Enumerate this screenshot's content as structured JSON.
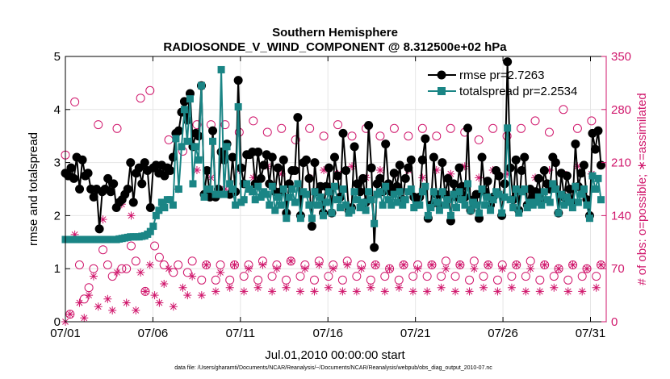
{
  "chart_data": {
    "type": "line",
    "title": [
      "Southern Hemisphere",
      "RADIOSONDE_V_WIND_COMPONENT @ 8.312500e+02 hPa"
    ],
    "xlabel": "Jul.01,2010 00:00:00 start",
    "ylabel": "rmse and totalspread",
    "y2label": "# of obs: o=possible; ∗=assimilated",
    "footnote": "data file: /Users/gharamti/Documents/NCAR/Reanalysis/~/Documents/NCAR/Reanalysis/webpub/obs_diag_output_2010-07.nc",
    "xlim": [
      0,
      30.9
    ],
    "ylim": [
      0,
      5
    ],
    "y2lim": [
      0,
      350
    ],
    "x_ticks": [
      0,
      5,
      10,
      15,
      20,
      25,
      30
    ],
    "x_tick_labels": [
      "07/01",
      "07/06",
      "07/11",
      "07/16",
      "07/21",
      "07/26",
      "07/31"
    ],
    "y_ticks": [
      0,
      1,
      2,
      3,
      4,
      5
    ],
    "y_tick_labels": [
      "0",
      "1",
      "2",
      "3",
      "4",
      "5"
    ],
    "y2_ticks": [
      0,
      70,
      140,
      210,
      280,
      350
    ],
    "y2_tick_labels": [
      "0",
      "70",
      "140",
      "210",
      "280",
      "350"
    ],
    "legend_position": "top-right",
    "colors": {
      "rmse": "#000000",
      "spread": "#1a8585",
      "obs": "#d0176c",
      "axis": "#000000"
    },
    "series": [
      {
        "name": "rmse",
        "legend": "rmse pr=2.7263",
        "axis": "left",
        "style": "line-circle",
        "values": [
          2.8,
          2.75,
          2.9,
          2.7,
          3.1,
          2.5,
          3.05,
          2.75,
          2.8,
          2.5,
          2.35,
          2.5,
          1.75,
          2.45,
          2.5,
          2.7,
          2.45,
          2.6,
          2.15,
          2.25,
          2.3,
          2.4,
          2.5,
          3.0,
          2.25,
          2.8,
          2.9,
          2.6,
          3.0,
          2.85,
          2.15,
          2.9,
          2.95,
          2.8,
          2.95,
          2.75,
          2.9,
          2.85,
          3.1,
          3.55,
          3.6,
          3.95,
          4.15,
          3.8,
          4.3,
          3.3,
          3.55,
          3.5,
          4.45,
          2.4,
          2.85,
          2.35,
          3.6,
          2.35,
          2.5,
          3.2,
          3.05,
          3.35,
          2.4,
          3.1,
          2.45,
          4.55,
          2.9,
          2.6,
          3.15,
          3.15,
          3.2,
          2.6,
          3.2,
          2.7,
          2.95,
          3.15,
          2.6,
          3.1,
          2.45,
          2.9,
          2.45,
          3.05,
          2.05,
          2.6,
          2.85,
          2.85,
          3.85,
          2.0,
          3.0,
          3.05,
          2.7,
          1.8,
          3.0,
          2.45,
          2.55,
          2.05,
          2.55,
          2.9,
          2.05,
          3.1,
          2.75,
          2.35,
          3.55,
          2.85,
          2.1,
          2.15,
          3.3,
          2.6,
          2.45,
          2.7,
          2.25,
          3.7,
          2.9,
          1.4,
          2.6,
          2.7,
          2.45,
          3.35,
          2.6,
          2.45,
          2.8,
          2.55,
          2.95,
          2.3,
          2.7,
          2.9,
          3.05,
          2.35,
          2.25,
          2.35,
          3.05,
          3.45,
          1.95,
          2.2,
          3.1,
          2.4,
          2.2,
          3.0,
          2.4,
          2.7,
          1.9,
          2.6,
          2.35,
          2.9,
          2.55,
          2.35,
          3.65,
          2.1,
          2.3,
          2.4,
          1.95,
          3.1,
          2.45,
          2.65,
          2.2,
          2.35,
          2.85,
          2.75,
          2.0,
          2.6,
          4.9,
          2.9,
          2.3,
          3.05,
          2.1,
          2.85,
          3.1,
          2.2,
          2.5,
          2.35,
          2.45,
          2.7,
          2.3,
          2.85,
          2.6,
          2.5,
          3.1,
          3.0,
          2.05,
          2.8,
          2.35,
          2.75,
          2.5,
          2.25,
          3.35,
          2.55,
          2.8,
          2.95,
          2.3,
          2.0,
          3.55,
          3.25,
          3.6,
          2.95
        ]
      },
      {
        "name": "totalspread",
        "legend": "totalspread pr=2.2534",
        "axis": "left",
        "style": "line-square",
        "values": [
          1.55,
          1.55,
          1.55,
          1.55,
          1.55,
          1.55,
          1.55,
          1.55,
          1.55,
          1.55,
          1.55,
          1.55,
          1.55,
          1.55,
          1.55,
          1.55,
          1.55,
          1.55,
          1.55,
          1.56,
          1.57,
          1.58,
          1.59,
          1.6,
          1.6,
          1.6,
          1.6,
          1.61,
          1.62,
          1.65,
          1.7,
          1.8,
          2.0,
          2.1,
          2.25,
          2.15,
          2.3,
          2.3,
          2.2,
          3.45,
          2.5,
          3.3,
          4.0,
          3.4,
          4.2,
          2.6,
          3.3,
          3.05,
          4.45,
          2.35,
          2.5,
          2.5,
          3.4,
          2.4,
          2.4,
          4.75,
          2.4,
          3.3,
          2.6,
          2.5,
          2.2,
          4.05,
          2.25,
          2.3,
          2.6,
          2.5,
          2.45,
          2.3,
          2.55,
          2.35,
          2.45,
          2.4,
          2.2,
          2.55,
          2.1,
          2.35,
          2.2,
          2.5,
          1.95,
          2.35,
          2.5,
          2.25,
          2.6,
          1.95,
          2.45,
          2.4,
          2.2,
          1.95,
          2.45,
          2.2,
          2.35,
          2.0,
          2.25,
          2.45,
          2.05,
          2.55,
          2.3,
          2.15,
          2.5,
          2.2,
          2.05,
          2.1,
          2.45,
          2.3,
          2.15,
          2.25,
          2.1,
          2.45,
          2.3,
          1.85,
          2.4,
          2.45,
          2.2,
          2.55,
          2.3,
          2.2,
          2.4,
          2.25,
          2.45,
          2.2,
          2.3,
          2.45,
          2.5,
          2.15,
          2.2,
          2.2,
          2.45,
          2.55,
          2.0,
          2.15,
          2.45,
          2.25,
          2.1,
          2.45,
          2.2,
          2.3,
          2.0,
          2.4,
          2.15,
          2.45,
          2.3,
          2.2,
          2.6,
          2.1,
          2.25,
          2.2,
          2.05,
          2.5,
          2.2,
          2.35,
          2.1,
          2.3,
          2.45,
          2.4,
          2.05,
          2.35,
          3.65,
          2.3,
          2.15,
          2.5,
          2.05,
          2.45,
          2.5,
          2.15,
          2.25,
          2.2,
          2.25,
          2.35,
          2.2,
          2.45,
          2.3,
          2.25,
          2.6,
          2.5,
          2.05,
          2.4,
          2.2,
          2.35,
          2.25,
          2.15,
          2.55,
          2.25,
          2.4,
          2.5,
          2.2,
          1.95,
          2.75,
          2.5,
          2.7,
          2.3
        ]
      },
      {
        "name": "possible",
        "axis": "right",
        "style": "circle",
        "values": [
          220,
          10,
          290,
          75,
          30,
          45,
          70,
          260,
          95,
          75,
          60,
          255,
          70,
          70,
          100,
          80,
          295,
          40,
          305,
          100,
          85,
          75,
          240,
          65,
          75,
          225,
          65,
          80,
          260,
          55,
          75,
          260,
          55,
          75,
          260,
          55,
          75,
          250,
          60,
          75,
          265,
          55,
          80,
          250,
          60,
          75,
          255,
          55,
          80,
          240,
          60,
          75,
          255,
          55,
          80,
          245,
          60,
          75,
          260,
          55,
          80,
          245,
          60,
          75,
          255,
          55,
          75,
          245,
          60,
          70,
          255,
          55,
          75,
          245,
          60,
          75,
          255,
          60,
          75,
          245,
          60,
          80,
          255,
          60,
          75,
          250,
          55,
          80,
          240,
          60,
          75,
          255,
          55,
          75,
          245,
          60,
          75,
          255,
          60,
          80,
          265,
          55,
          75,
          250,
          60,
          70,
          280,
          55,
          75,
          255,
          60,
          70,
          265,
          60,
          75
        ]
      },
      {
        "name": "assimilated",
        "axis": "right",
        "style": "star",
        "values": [
          0,
          10,
          115,
          25,
          5,
          35,
          60,
          20,
          135,
          30,
          15,
          65,
          155,
          25,
          140,
          15,
          65,
          40,
          75,
          35,
          25,
          50,
          70,
          20,
          175,
          45,
          35,
          60,
          200,
          35,
          75,
          190,
          40,
          65,
          175,
          45,
          75,
          200,
          40,
          70,
          190,
          45,
          75,
          205,
          40,
          70,
          195,
          45,
          80,
          200,
          40,
          70,
          190,
          40,
          75,
          200,
          45,
          70,
          195,
          40,
          75,
          205,
          40,
          70,
          190,
          45,
          75,
          200,
          40,
          70,
          195,
          45,
          75,
          200,
          40,
          70,
          190,
          40,
          75,
          200,
          45,
          70,
          195,
          40,
          75,
          205,
          40,
          70,
          190,
          45,
          75,
          200,
          40,
          70,
          195,
          45,
          75,
          200,
          40,
          70,
          190,
          40,
          75,
          200,
          45,
          70,
          195,
          40,
          75,
          205,
          40,
          70,
          195,
          45,
          75
        ]
      }
    ]
  }
}
